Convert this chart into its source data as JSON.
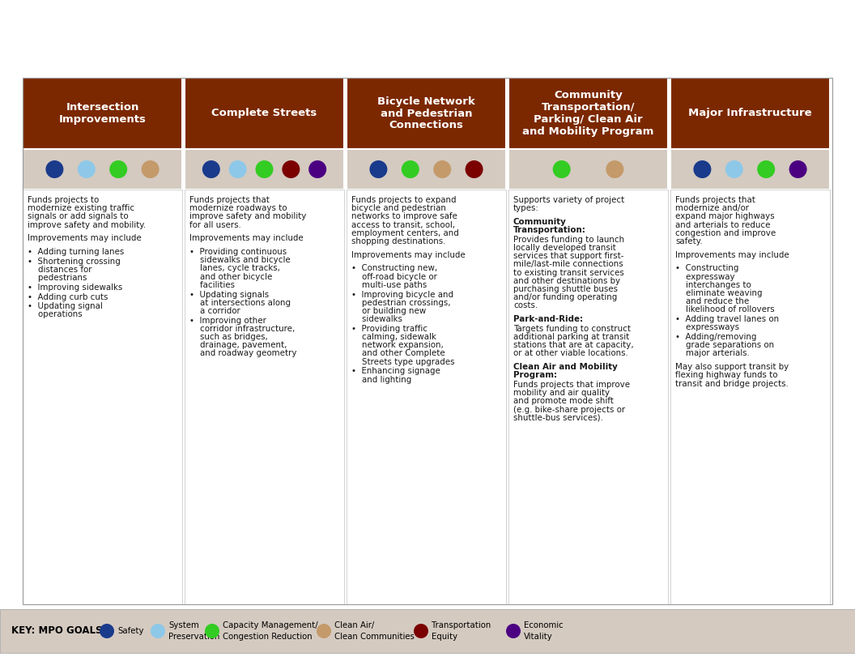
{
  "bg_color": "#FFFFFF",
  "header_bg": "#7B2800",
  "header_text_color": "#FFFFFF",
  "stripe_bg": "#D4CAC0",
  "footer_bg": "#D4CAC0",
  "body_bg": "#FFFFFF",
  "columns": [
    {
      "title": "Intersection\nImprovements",
      "dots": [
        "#1A3A8C",
        "#8EC8E8",
        "#33CC22",
        "#C49A6A"
      ],
      "text_blocks": [
        {
          "text": "Funds projects to\nmodernize existing traffic\nsignals or add signals to\nimprove safety and mobility.",
          "bold": false
        },
        {
          "text": "",
          "bold": false
        },
        {
          "text": "Improvements may include",
          "bold": false
        },
        {
          "text": "",
          "bold": false
        },
        {
          "text": "•  Adding turning lanes",
          "bold": false
        },
        {
          "text": "•  Shortening crossing\n    distances for\n    pedestrians",
          "bold": false
        },
        {
          "text": "•  Improving sidewalks",
          "bold": false
        },
        {
          "text": "•  Adding curb cuts",
          "bold": false
        },
        {
          "text": "•  Updating signal\n    operations",
          "bold": false
        }
      ]
    },
    {
      "title": "Complete Streets",
      "dots": [
        "#1A3A8C",
        "#8EC8E8",
        "#33CC22",
        "#7B0000",
        "#4B0082"
      ],
      "text_blocks": [
        {
          "text": "Funds projects that\nmodernize roadways to\nimprove safety and mobility\nfor all users.",
          "bold": false
        },
        {
          "text": "",
          "bold": false
        },
        {
          "text": "Improvements may include",
          "bold": false
        },
        {
          "text": "",
          "bold": false
        },
        {
          "text": "•  Providing continuous\n    sidewalks and bicycle\n    lanes, cycle tracks,\n    and other bicycle\n    facilities",
          "bold": false
        },
        {
          "text": "•  Updating signals\n    at intersections along\n    a corridor",
          "bold": false
        },
        {
          "text": "•  Improving other\n    corridor infrastructure,\n    such as bridges,\n    drainage, pavement,\n    and roadway geometry",
          "bold": false
        }
      ]
    },
    {
      "title": "Bicycle Network\nand Pedestrian\nConnections",
      "dots": [
        "#1A3A8C",
        "#33CC22",
        "#C49A6A",
        "#7B0000"
      ],
      "text_blocks": [
        {
          "text": "Funds projects to expand\nbicycle and pedestrian\nnetworks to improve safe\naccess to transit, school,\nemployment centers, and\nshopping destinations.",
          "bold": false
        },
        {
          "text": "",
          "bold": false
        },
        {
          "text": "Improvements may include",
          "bold": false
        },
        {
          "text": "",
          "bold": false
        },
        {
          "text": "•  Constructing new,\n    off-road bicycle or\n    multi-use paths",
          "bold": false
        },
        {
          "text": "•  Improving bicycle and\n    pedestrian crossings,\n    or building new\n    sidewalks",
          "bold": false
        },
        {
          "text": "•  Providing traffic\n    calming, sidewalk\n    network expansion,\n    and other Complete\n    Streets type upgrades",
          "bold": false
        },
        {
          "text": "•  Enhancing signage\n    and lighting",
          "bold": false
        }
      ]
    },
    {
      "title": "Community\nTransportation/\nParking/ Clean Air\nand Mobility Program",
      "dots": [
        "#33CC22",
        "#C49A6A"
      ],
      "text_blocks": [
        {
          "text": "Supports variety of project\ntypes:",
          "bold": false
        },
        {
          "text": "",
          "bold": false
        },
        {
          "text": "Community\nTransportation:",
          "bold": true
        },
        {
          "text": "Provides funding to launch\nlocally developed transit\nservices that support first-\nmile/last-mile connections\nto existing transit services\nand other destinations by\npurchasing shuttle buses\nand/or funding operating\ncosts.",
          "bold": false
        },
        {
          "text": "",
          "bold": false
        },
        {
          "text": "Park-and-Ride:",
          "bold": true
        },
        {
          "text": "Targets funding to construct\nadditional parking at transit\nstations that are at capacity,\nor at other viable locations.",
          "bold": false
        },
        {
          "text": "",
          "bold": false
        },
        {
          "text": "Clean Air and Mobility\nProgram:",
          "bold": true
        },
        {
          "text": "Funds projects that improve\nmobility and air quality\nand promote mode shift\n(e.g. bike-share projects or\nshuttle-bus services).",
          "bold": false
        }
      ]
    },
    {
      "title": "Major Infrastructure",
      "dots": [
        "#1A3A8C",
        "#8EC8E8",
        "#33CC22",
        "#4B0082"
      ],
      "text_blocks": [
        {
          "text": "Funds projects that\nmodernize and/or\nexpand major highways\nand arterials to reduce\ncongestion and improve\nsafety.",
          "bold": false
        },
        {
          "text": "",
          "bold": false
        },
        {
          "text": "Improvements may include",
          "bold": false
        },
        {
          "text": "",
          "bold": false
        },
        {
          "text": "•  Constructing\n    expressway\n    interchanges to\n    eliminate weaving\n    and reduce the\n    likelihood of rollovers",
          "bold": false
        },
        {
          "text": "•  Adding travel lanes on\n    expressways",
          "bold": false
        },
        {
          "text": "•  Adding/removing\n    grade separations on\n    major arterials.",
          "bold": false
        },
        {
          "text": "",
          "bold": false
        },
        {
          "text": "May also support transit by\nflexing highway funds to\ntransit and bridge projects.",
          "bold": false
        }
      ]
    }
  ],
  "legend_items": [
    {
      "color": "#1A3A8C",
      "line1": "Safety",
      "line2": ""
    },
    {
      "color": "#8EC8E8",
      "line1": "System",
      "line2": "Preservation"
    },
    {
      "color": "#33CC22",
      "line1": "Capacity Management/",
      "line2": "Congestion Reduction"
    },
    {
      "color": "#C49A6A",
      "line1": "Clean Air/",
      "line2": "Clean Communities"
    },
    {
      "color": "#7B0000",
      "line1": "Transportation",
      "line2": "Equity"
    },
    {
      "color": "#4B0082",
      "line1": "Economic",
      "line2": "Vitality"
    }
  ],
  "legend_key": "KEY: MPO GOALS"
}
